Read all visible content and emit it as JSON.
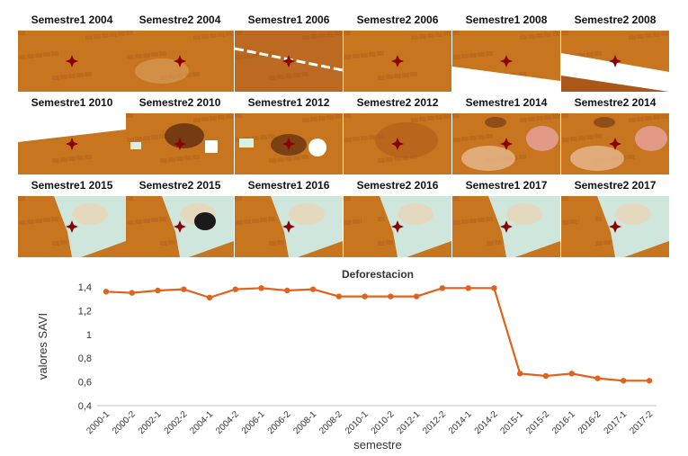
{
  "tiles": [
    {
      "label": "Semestre1 2004",
      "scene": "plain"
    },
    {
      "label": "Semestre2 2004",
      "scene": "plain_mottled"
    },
    {
      "label": "Semestre1 2006",
      "scene": "stripe_line"
    },
    {
      "label": "Semestre2 2006",
      "scene": "plain"
    },
    {
      "label": "Semestre1 2008",
      "scene": "white_wedge_low"
    },
    {
      "label": "Semestre2 2008",
      "scene": "white_wedge_high"
    },
    {
      "label": "Semestre1 2010",
      "scene": "white_top"
    },
    {
      "label": "Semestre2 2010",
      "scene": "dark_patches"
    },
    {
      "label": "Semestre1 2012",
      "scene": "dark_patches_white"
    },
    {
      "label": "Semestre2 2012",
      "scene": "plain_dark"
    },
    {
      "label": "Semestre1 2014",
      "scene": "light_patches"
    },
    {
      "label": "Semestre2 2014",
      "scene": "light_patches_b"
    },
    {
      "label": "Semestre1 2015",
      "scene": "cleared"
    },
    {
      "label": "Semestre2 2015",
      "scene": "cleared_black"
    },
    {
      "label": "Semestre1 2016",
      "scene": "cleared"
    },
    {
      "label": "Semestre2 2016",
      "scene": "cleared_b"
    },
    {
      "label": "Semestre1 2017",
      "scene": "cleared"
    },
    {
      "label": "Semestre2 2017",
      "scene": "cleared_b"
    }
  ],
  "colors": {
    "forest": "#c8751f",
    "forest_dark": "#a9581a",
    "cleared": "#cfe6dc",
    "cleared_alt": "#e8d6b8",
    "marker": "#8b0000",
    "line": "#e0621c"
  },
  "chart_data": {
    "type": "line",
    "title": "Deforestacion",
    "xlabel": "semestre",
    "ylabel": "valores SAVI",
    "ylim": [
      0.4,
      1.4
    ],
    "yticks": [
      "0,4",
      "0,6",
      "0,8",
      "1",
      "1,2",
      "1,4"
    ],
    "ytick_values": [
      0.4,
      0.6,
      0.8,
      1.0,
      1.2,
      1.4
    ],
    "categories": [
      "2000-1",
      "2000-2",
      "2002-1",
      "2002-2",
      "2004-1",
      "2004-2",
      "2006-1",
      "2006-2",
      "2008-1",
      "2008-2",
      "2010-1",
      "2010-2",
      "2012-1",
      "2012-2",
      "2014-1",
      "2014-2",
      "2015-1",
      "2015-2",
      "2016-1",
      "2016-2",
      "2017-1",
      "2017-2"
    ],
    "values": [
      1.36,
      1.35,
      1.37,
      1.38,
      1.31,
      1.38,
      1.39,
      1.37,
      1.38,
      1.32,
      1.32,
      1.32,
      1.32,
      1.39,
      1.39,
      1.39,
      0.67,
      0.65,
      0.67,
      0.63,
      0.61,
      0.61
    ],
    "grid": false,
    "legend": "none"
  }
}
